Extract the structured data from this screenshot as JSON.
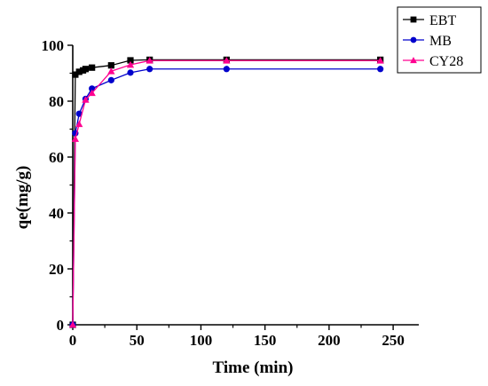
{
  "chart_data": {
    "type": "line",
    "xlabel": "Time (min)",
    "ylabel": "qe(mg/g)",
    "xlim": [
      0,
      270
    ],
    "ylim": [
      0,
      100
    ],
    "xticks": [
      0,
      50,
      100,
      150,
      200,
      250
    ],
    "yticks": [
      0,
      20,
      40,
      60,
      80,
      100
    ],
    "grid": false,
    "legend_position": "top-right",
    "series": [
      {
        "name": "EBT",
        "color": "#000000",
        "marker": "square",
        "x": [
          0,
          2,
          5,
          8,
          10,
          15,
          30,
          45,
          60,
          120,
          240
        ],
        "y": [
          0,
          89.5,
          90.5,
          91.0,
          91.5,
          92.0,
          92.8,
          94.6,
          94.8,
          94.8,
          94.8
        ]
      },
      {
        "name": "MB",
        "color": "#0000cc",
        "marker": "circle",
        "x": [
          0,
          2,
          5,
          10,
          15,
          30,
          45,
          60,
          120,
          240
        ],
        "y": [
          0,
          68.5,
          75.5,
          80.8,
          84.5,
          87.5,
          90.2,
          91.5,
          91.5,
          91.5
        ]
      },
      {
        "name": "CY28",
        "color": "#ff0090",
        "marker": "triangle",
        "x": [
          0,
          2,
          5,
          10,
          15,
          30,
          45,
          60,
          120,
          240
        ],
        "y": [
          0,
          66.5,
          71.8,
          80.5,
          82.9,
          90.7,
          93.0,
          94.5,
          94.5,
          94.5
        ]
      }
    ]
  }
}
